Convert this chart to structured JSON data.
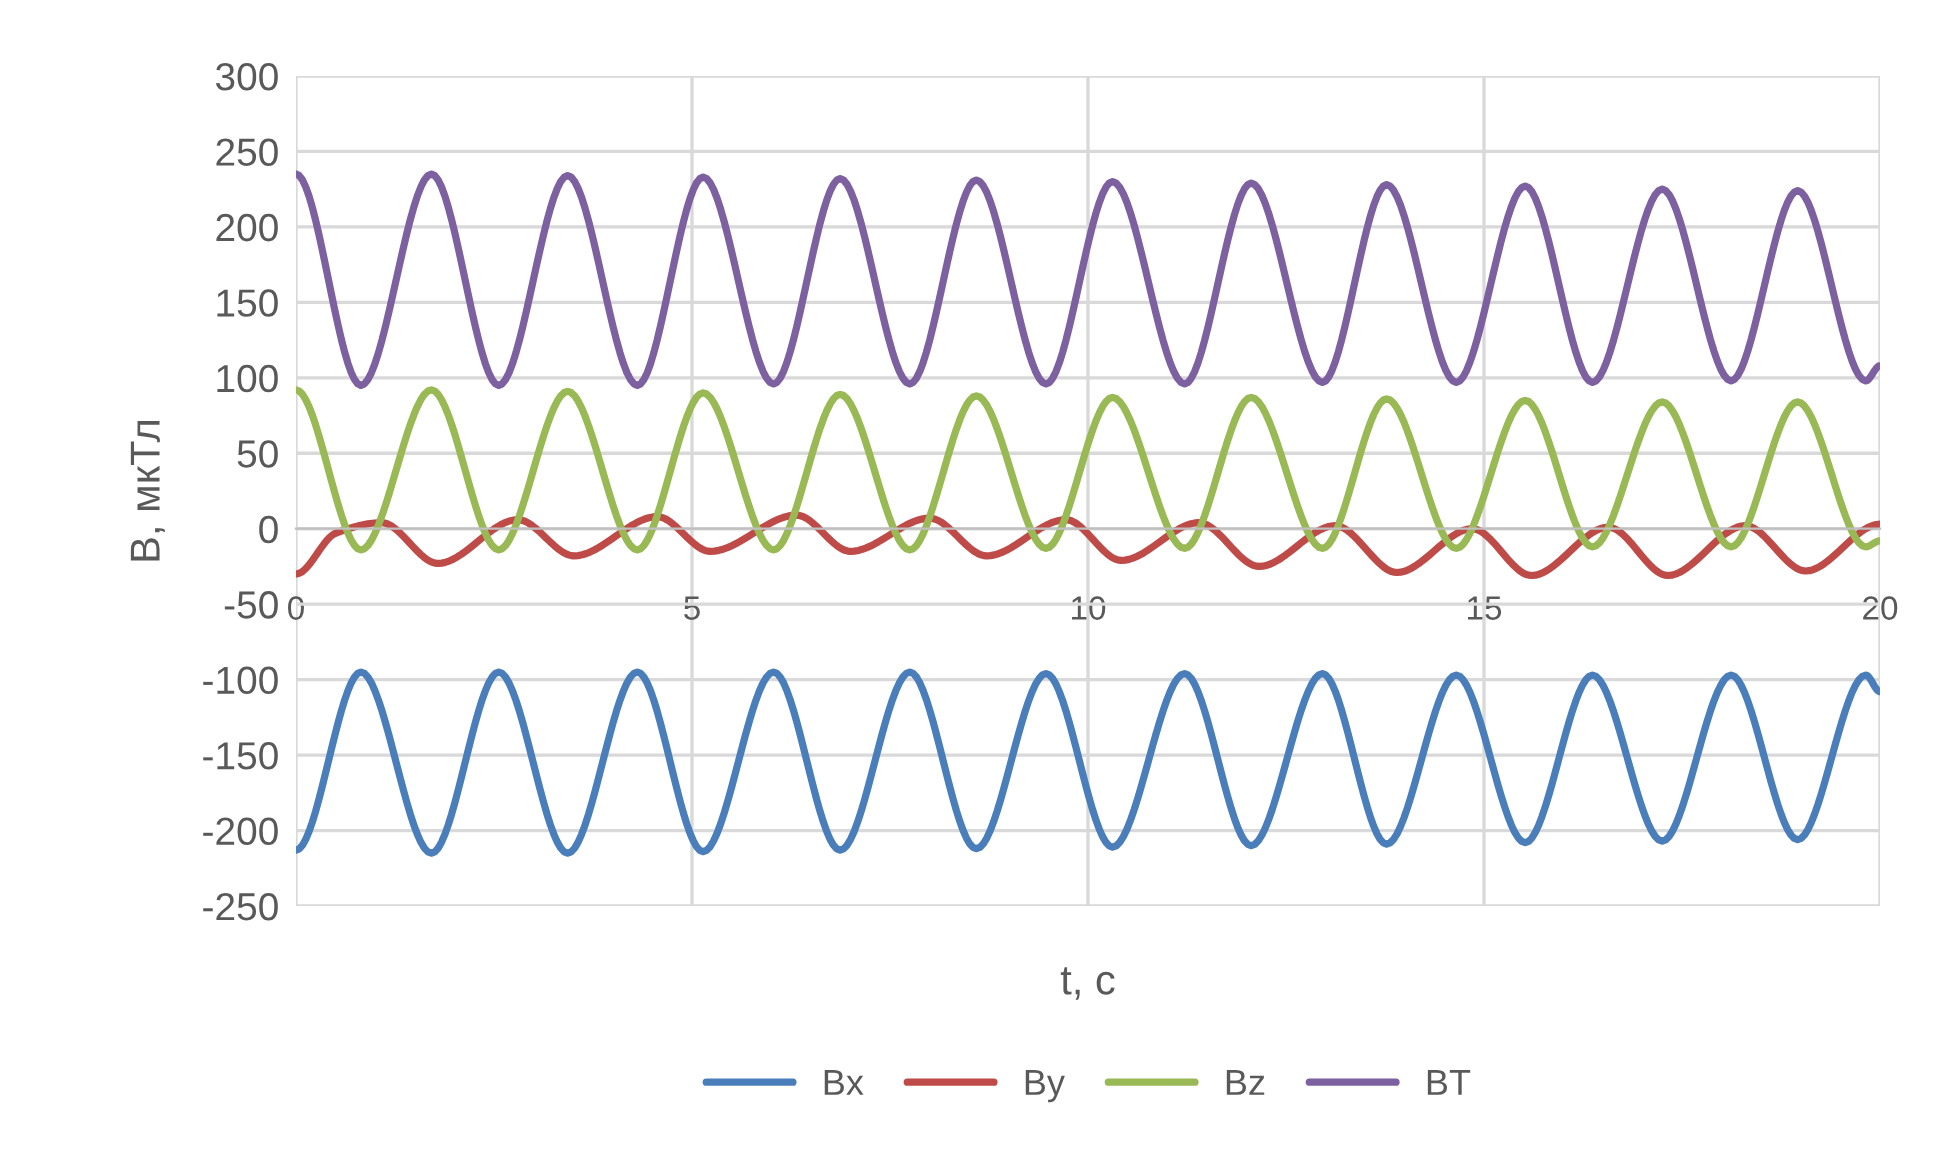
{
  "chart_data": {
    "type": "line",
    "xlabel": "t, с",
    "ylabel": "B, мкТл",
    "xlim": [
      0,
      20
    ],
    "ylim": [
      -250,
      300
    ],
    "xticks": [
      0,
      5,
      10,
      15,
      20
    ],
    "yticks": [
      -250,
      -200,
      -150,
      -100,
      -50,
      0,
      50,
      100,
      150,
      200,
      250,
      300
    ],
    "grid": true,
    "legend": "bottom",
    "series": [
      {
        "name": "Bx",
        "color": "#4a7ebb",
        "x": [
          0,
          0.82,
          1.71,
          2.56,
          3.43,
          4.31,
          5.14,
          6.03,
          6.87,
          7.75,
          8.59,
          9.47,
          10.31,
          11.22,
          12.06,
          12.96,
          13.77,
          14.65,
          15.52,
          16.37,
          17.25,
          18.12,
          18.96,
          19.82,
          20
        ],
        "values": [
          -213,
          -95,
          -215,
          -95,
          -215,
          -95,
          -214,
          -95,
          -213,
          -95,
          -212,
          -96,
          -211,
          -96,
          -210,
          -96,
          -209,
          -97,
          -208,
          -97,
          -207,
          -97,
          -206,
          -97,
          -108
        ]
      },
      {
        "name": "By",
        "color": "#be4b48",
        "x": [
          0,
          0.5,
          1.08,
          1.79,
          2.8,
          3.51,
          4.56,
          5.23,
          6.32,
          7.0,
          8.0,
          8.72,
          9.72,
          10.42,
          11.4,
          12.16,
          13.12,
          13.9,
          14.85,
          15.6,
          16.57,
          17.32,
          18.3,
          19.06,
          20
        ],
        "values": [
          -30,
          -3,
          4,
          -23,
          6,
          -18,
          8,
          -15,
          9,
          -15,
          7,
          -18,
          6,
          -21,
          4,
          -25,
          2,
          -29,
          0,
          -31,
          1,
          -31,
          2,
          -28,
          3
        ]
      },
      {
        "name": "Bz",
        "color": "#98b954",
        "x": [
          0,
          0.82,
          1.71,
          2.56,
          3.43,
          4.31,
          5.14,
          6.03,
          6.87,
          7.75,
          8.59,
          9.47,
          10.31,
          11.22,
          12.06,
          12.96,
          13.77,
          14.65,
          15.52,
          16.37,
          17.25,
          18.12,
          18.96,
          19.82,
          20
        ],
        "values": [
          92,
          -14,
          92,
          -14,
          91,
          -14,
          90,
          -14,
          89,
          -14,
          88,
          -13,
          87,
          -13,
          87,
          -13,
          86,
          -13,
          85,
          -12,
          84,
          -12,
          84,
          -12,
          -8
        ]
      },
      {
        "name": "BT",
        "color": "#7d60a0",
        "x": [
          0,
          0.82,
          1.71,
          2.56,
          3.43,
          4.31,
          5.14,
          6.03,
          6.87,
          7.75,
          8.59,
          9.47,
          10.31,
          11.22,
          12.06,
          12.96,
          13.77,
          14.65,
          15.52,
          16.37,
          17.25,
          18.12,
          18.96,
          19.82,
          20
        ],
        "values": [
          235,
          95,
          235,
          95,
          234,
          95,
          233,
          96,
          232,
          96,
          231,
          96,
          230,
          96,
          229,
          97,
          228,
          97,
          227,
          97,
          225,
          98,
          224,
          98,
          108
        ]
      }
    ]
  }
}
